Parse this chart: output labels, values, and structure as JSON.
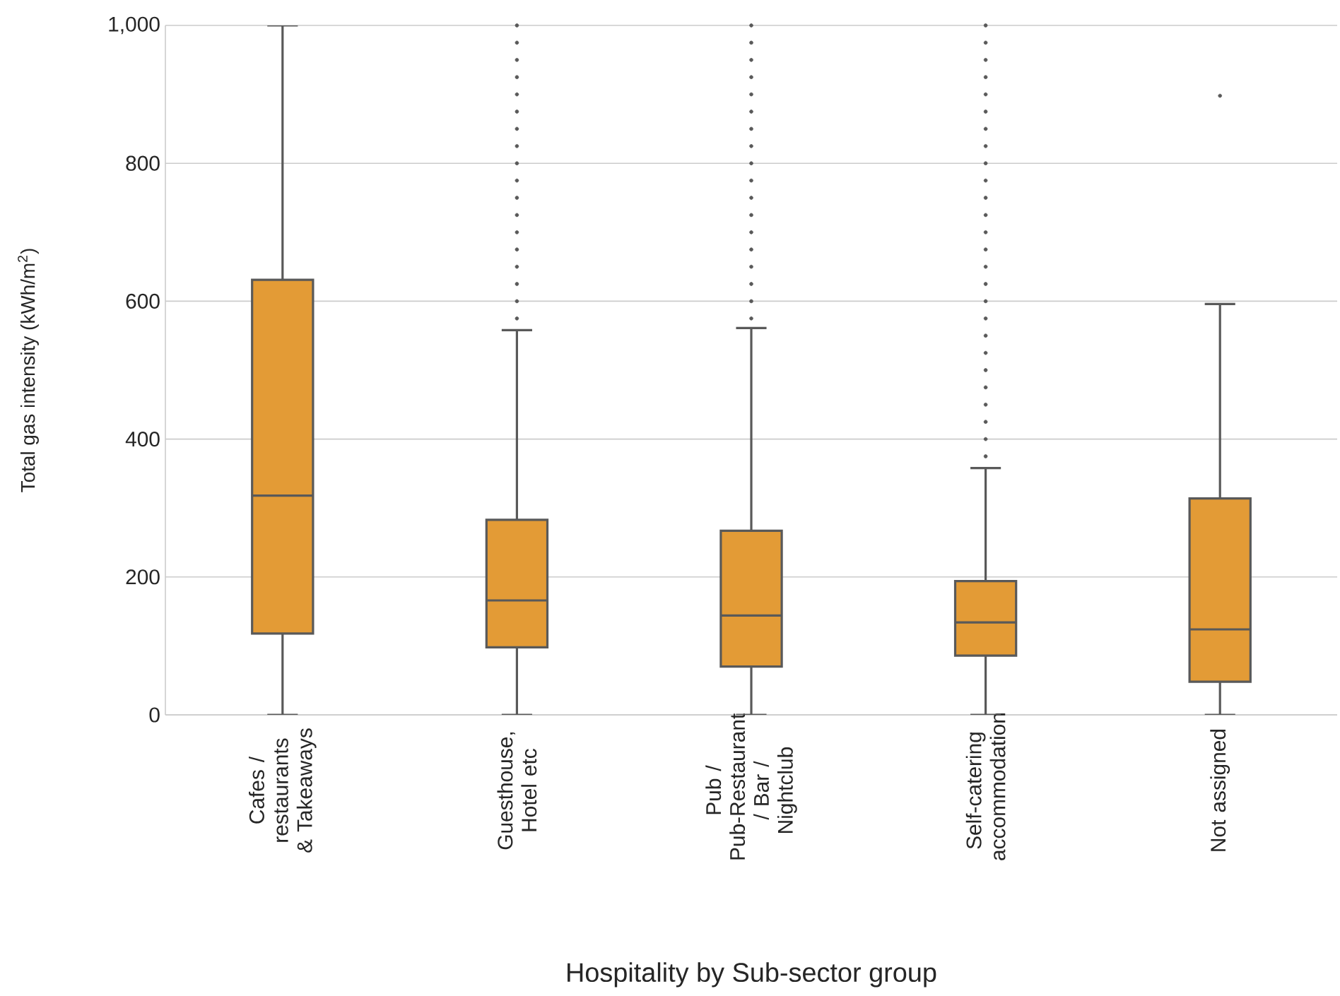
{
  "chart_data": {
    "type": "box",
    "xlabel": "Hospitality by Sub-sector group",
    "ylabel": "Total gas intensity (kWh/m$^{2}$)",
    "categories": [
      "Cafes / restaurants & Takeaways",
      "Guesthouse, Hotel etc",
      "Pub / Pub-Restaurant / Bar / Nightclub",
      "Self-catering accommodation",
      "Not assigned"
    ],
    "series": [
      {
        "color": "#e39b36",
        "boxes": [
          {
            "low": 0,
            "q1": 118,
            "median": 318,
            "q3": 631,
            "high": 1000
          },
          {
            "low": 0,
            "q1": 98,
            "median": 166,
            "q3": 283,
            "high": 558,
            "outliers": [
              575,
              600,
              625,
              650,
              675,
              700,
              725,
              750,
              775,
              800,
              825,
              850,
              875,
              900,
              925,
              950,
              975,
              1000
            ]
          },
          {
            "low": 0,
            "q1": 70,
            "median": 144,
            "q3": 267,
            "high": 561,
            "outliers": [
              575,
              600,
              625,
              650,
              675,
              700,
              725,
              750,
              775,
              800,
              825,
              850,
              875,
              900,
              925,
              950,
              975,
              1000
            ]
          },
          {
            "low": 0,
            "q1": 86,
            "median": 134,
            "q3": 194,
            "high": 358,
            "outliers": [
              375,
              400,
              425,
              450,
              475,
              500,
              525,
              550,
              575,
              600,
              625,
              650,
              675,
              700,
              725,
              750,
              775,
              800,
              825,
              850,
              875,
              900,
              925,
              950,
              975,
              1000
            ]
          },
          {
            "low": 0,
            "q1": 48,
            "median": 124,
            "q3": 314,
            "high": 596,
            "outliers": [
              898
            ]
          }
        ]
      }
    ],
    "ylim": [
      0,
      1000
    ],
    "yticks": [
      0,
      200,
      400,
      600,
      800,
      {
        "value": 1000,
        "label": "1,000"
      }
    ],
    "grid": "y"
  }
}
